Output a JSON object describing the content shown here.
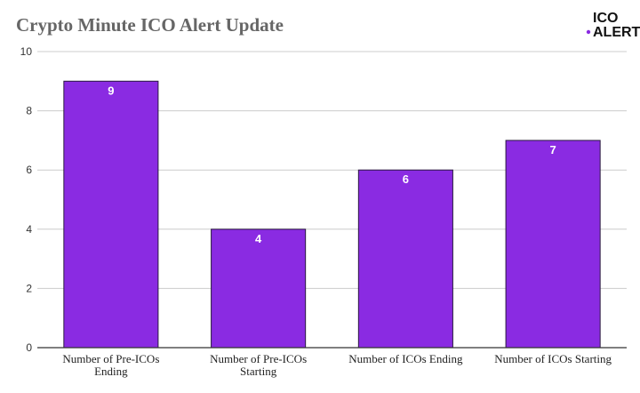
{
  "colors": {
    "bar": "#8a2be2",
    "bar_stroke": "#2a1a40",
    "grid": "#cccccc",
    "axis": "#333333",
    "title": "#666666",
    "logo_dot": "#8a2be2"
  },
  "logo": {
    "line1": "ICO",
    "line2": "ALERT"
  },
  "chart_data": {
    "type": "bar",
    "title": "Crypto Minute ICO Alert Update",
    "xlabel": "",
    "ylabel": "",
    "categories": [
      [
        "Number of Pre-ICOs",
        "Ending"
      ],
      [
        "Number of Pre-ICOs",
        "Starting"
      ],
      [
        "Number of ICOs Ending"
      ],
      [
        "Number of ICOs Starting"
      ]
    ],
    "values": [
      9,
      4,
      6,
      7
    ],
    "ylim": [
      0,
      10
    ],
    "yticks": [
      0,
      2,
      4,
      6,
      8,
      10
    ],
    "grid": true,
    "data_labels": true,
    "legend": "none"
  }
}
